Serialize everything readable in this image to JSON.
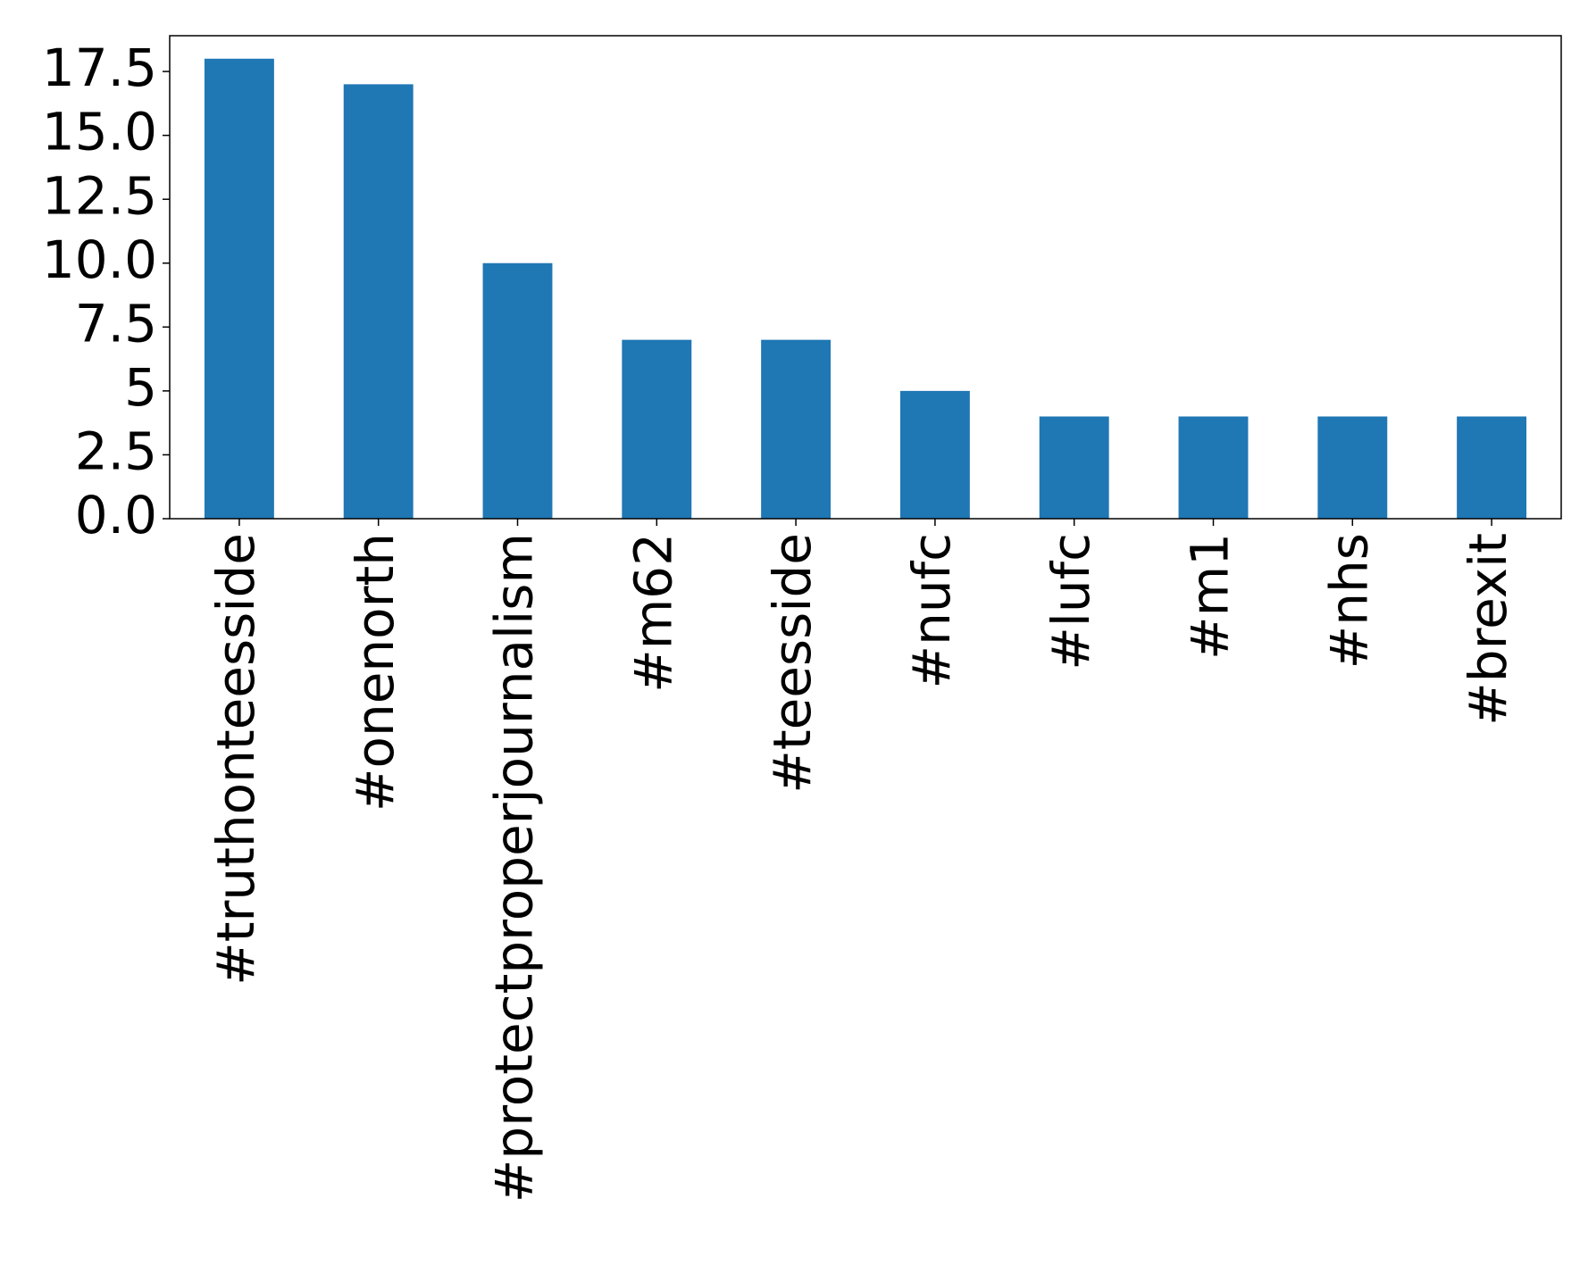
{
  "chart_data": {
    "type": "bar",
    "categories": [
      "#truthonteesside",
      "#onenorth",
      "#protectproperjournalism",
      "#m62",
      "#teesside",
      "#nufc",
      "#lufc",
      "#m1",
      "#nhs",
      "#brexit"
    ],
    "values": [
      18,
      17,
      10,
      7,
      7,
      5,
      4,
      4,
      4,
      4
    ],
    "color": "#1f77b4",
    "ylim": [
      0,
      18.9
    ],
    "yticks": [
      {
        "value": 0,
        "label": "0.0"
      },
      2.5,
      5,
      7.5,
      {
        "value": 10,
        "label": "10.0"
      },
      12.5,
      {
        "value": 15,
        "label": "15.0"
      },
      17.5
    ],
    "grid": false
  }
}
